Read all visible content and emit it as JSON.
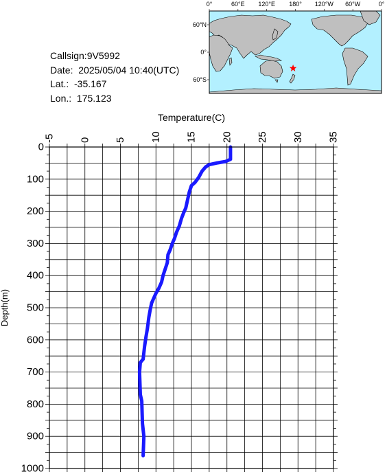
{
  "info": {
    "callsign": "Callsign:9V5992",
    "date": "Date:  2025/05/04 10:40(UTC)",
    "lat": "Lat.:  -35.167",
    "lon": "Lon.:  175.123"
  },
  "map": {
    "lon_labels": [
      "0°",
      "60°E",
      "120°E",
      "180°",
      "120°W",
      "60°W",
      "0°"
    ],
    "lat_labels": [
      "60°N",
      "0°",
      "60°S"
    ],
    "marker_lat": -35.167,
    "marker_lon": 175.123,
    "colors": {
      "ocean": "#b3f0ff",
      "land": "#bfbfbf",
      "marker": "#ff0000"
    }
  },
  "chart_data": {
    "type": "line",
    "xlabel": "Temperature(C)",
    "ylabel": "Depth(m)",
    "xlim": [
      -5,
      35
    ],
    "ylim": [
      1000,
      0
    ],
    "x_ticks": [
      "-5",
      "0",
      "5",
      "10",
      "15",
      "20",
      "25",
      "30",
      "35"
    ],
    "y_ticks": [
      "0",
      "100",
      "200",
      "300",
      "400",
      "500",
      "600",
      "700",
      "800",
      "900",
      "1000"
    ],
    "grid": true,
    "line_color": "#1a1aff",
    "series": [
      {
        "points": [
          [
            20.5,
            0
          ],
          [
            20.5,
            38
          ],
          [
            19.8,
            45
          ],
          [
            18.5,
            50
          ],
          [
            17.5,
            55
          ],
          [
            17.0,
            62
          ],
          [
            16.5,
            75
          ],
          [
            16.0,
            95
          ],
          [
            15.5,
            110
          ],
          [
            15.0,
            120
          ],
          [
            14.7,
            140
          ],
          [
            14.5,
            160
          ],
          [
            14.2,
            190
          ],
          [
            13.9,
            205
          ],
          [
            13.6,
            222
          ],
          [
            13.3,
            245
          ],
          [
            12.9,
            265
          ],
          [
            12.6,
            285
          ],
          [
            12.3,
            300
          ],
          [
            12.0,
            320
          ],
          [
            11.7,
            335
          ],
          [
            11.6,
            360
          ],
          [
            11.3,
            380
          ],
          [
            11.0,
            400
          ],
          [
            10.8,
            420
          ],
          [
            10.4,
            440
          ],
          [
            10.0,
            455
          ],
          [
            9.7,
            470
          ],
          [
            9.4,
            485
          ],
          [
            9.2,
            505
          ],
          [
            9.0,
            530
          ],
          [
            8.8,
            565
          ],
          [
            8.6,
            590
          ],
          [
            8.4,
            620
          ],
          [
            8.2,
            660
          ],
          [
            7.8,
            670
          ],
          [
            7.7,
            700
          ],
          [
            7.8,
            770
          ],
          [
            8.0,
            790
          ],
          [
            8.1,
            860
          ],
          [
            8.3,
            900
          ],
          [
            8.2,
            960
          ]
        ]
      }
    ]
  }
}
